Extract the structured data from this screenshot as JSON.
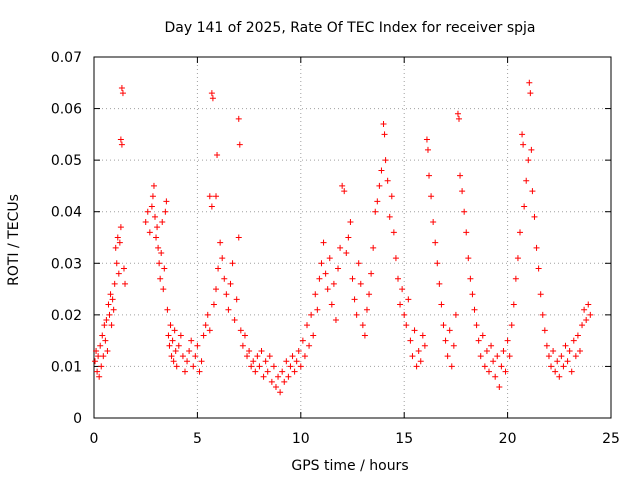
{
  "chart_data": {
    "type": "scatter",
    "title": "Day 141 of 2025, Rate Of TEC Index for receiver spja",
    "xlabel": "GPS time / hours",
    "ylabel": "ROTI / TECUs",
    "xlim": [
      0,
      25
    ],
    "ylim": [
      0,
      0.07
    ],
    "xticks": [
      0,
      5,
      10,
      15,
      20,
      25
    ],
    "xtick_labels": [
      "0",
      "5",
      "10",
      "15",
      "20",
      "25"
    ],
    "yticks": [
      0,
      0.01,
      0.02,
      0.03,
      0.04,
      0.05,
      0.06,
      0.07
    ],
    "ytick_labels": [
      "0",
      "0.01",
      "0.02",
      "0.03",
      "0.04",
      "0.05",
      "0.06",
      "0.07"
    ],
    "grid": true,
    "marker": "plus",
    "series": [
      {
        "name": "ROTI",
        "color": "#ff0000",
        "points": [
          [
            0.05,
            0.011
          ],
          [
            0.1,
            0.013
          ],
          [
            0.15,
            0.009
          ],
          [
            0.2,
            0.012
          ],
          [
            0.25,
            0.008
          ],
          [
            0.3,
            0.014
          ],
          [
            0.35,
            0.01
          ],
          [
            0.4,
            0.016
          ],
          [
            0.45,
            0.012
          ],
          [
            0.5,
            0.018
          ],
          [
            0.55,
            0.015
          ],
          [
            0.6,
            0.019
          ],
          [
            0.65,
            0.013
          ],
          [
            0.7,
            0.022
          ],
          [
            0.75,
            0.02
          ],
          [
            0.8,
            0.024
          ],
          [
            0.85,
            0.018
          ],
          [
            0.9,
            0.023
          ],
          [
            0.95,
            0.021
          ],
          [
            1.0,
            0.026
          ],
          [
            1.05,
            0.033
          ],
          [
            1.1,
            0.03
          ],
          [
            1.15,
            0.035
          ],
          [
            1.2,
            0.028
          ],
          [
            1.25,
            0.034
          ],
          [
            1.3,
            0.037
          ],
          [
            1.35,
            0.064
          ],
          [
            1.4,
            0.063
          ],
          [
            1.3,
            0.054
          ],
          [
            1.35,
            0.053
          ],
          [
            1.45,
            0.029
          ],
          [
            1.5,
            0.026
          ],
          [
            2.5,
            0.038
          ],
          [
            2.6,
            0.04
          ],
          [
            2.7,
            0.036
          ],
          [
            2.8,
            0.041
          ],
          [
            2.85,
            0.043
          ],
          [
            2.9,
            0.045
          ],
          [
            2.95,
            0.039
          ],
          [
            3.0,
            0.035
          ],
          [
            3.05,
            0.037
          ],
          [
            3.1,
            0.033
          ],
          [
            3.15,
            0.03
          ],
          [
            3.2,
            0.027
          ],
          [
            3.25,
            0.032
          ],
          [
            3.3,
            0.038
          ],
          [
            3.35,
            0.025
          ],
          [
            3.4,
            0.029
          ],
          [
            3.45,
            0.04
          ],
          [
            3.5,
            0.042
          ],
          [
            3.55,
            0.021
          ],
          [
            3.6,
            0.016
          ],
          [
            3.65,
            0.014
          ],
          [
            3.7,
            0.018
          ],
          [
            3.75,
            0.012
          ],
          [
            3.8,
            0.015
          ],
          [
            3.85,
            0.011
          ],
          [
            3.9,
            0.017
          ],
          [
            3.95,
            0.013
          ],
          [
            4.0,
            0.01
          ],
          [
            4.1,
            0.014
          ],
          [
            4.2,
            0.016
          ],
          [
            4.3,
            0.012
          ],
          [
            4.4,
            0.009
          ],
          [
            4.5,
            0.011
          ],
          [
            4.6,
            0.013
          ],
          [
            4.7,
            0.015
          ],
          [
            4.8,
            0.01
          ],
          [
            4.9,
            0.012
          ],
          [
            5.0,
            0.014
          ],
          [
            5.1,
            0.009
          ],
          [
            5.2,
            0.011
          ],
          [
            5.3,
            0.016
          ],
          [
            5.4,
            0.018
          ],
          [
            5.5,
            0.02
          ],
          [
            5.6,
            0.017
          ],
          [
            5.7,
            0.063
          ],
          [
            5.75,
            0.062
          ],
          [
            5.6,
            0.043
          ],
          [
            5.7,
            0.041
          ],
          [
            5.9,
            0.043
          ],
          [
            5.95,
            0.051
          ],
          [
            5.8,
            0.022
          ],
          [
            5.9,
            0.025
          ],
          [
            6.0,
            0.029
          ],
          [
            6.1,
            0.034
          ],
          [
            6.2,
            0.031
          ],
          [
            6.3,
            0.027
          ],
          [
            6.4,
            0.024
          ],
          [
            6.5,
            0.021
          ],
          [
            6.6,
            0.026
          ],
          [
            6.7,
            0.03
          ],
          [
            6.8,
            0.019
          ],
          [
            6.9,
            0.023
          ],
          [
            7.0,
            0.035
          ],
          [
            7.0,
            0.058
          ],
          [
            7.05,
            0.053
          ],
          [
            7.1,
            0.017
          ],
          [
            7.2,
            0.014
          ],
          [
            7.3,
            0.016
          ],
          [
            7.4,
            0.012
          ],
          [
            7.5,
            0.013
          ],
          [
            7.6,
            0.01
          ],
          [
            7.7,
            0.011
          ],
          [
            7.8,
            0.009
          ],
          [
            7.9,
            0.012
          ],
          [
            8.0,
            0.01
          ],
          [
            8.1,
            0.013
          ],
          [
            8.2,
            0.008
          ],
          [
            8.3,
            0.011
          ],
          [
            8.4,
            0.009
          ],
          [
            8.5,
            0.012
          ],
          [
            8.6,
            0.007
          ],
          [
            8.7,
            0.01
          ],
          [
            8.8,
            0.006
          ],
          [
            8.9,
            0.008
          ],
          [
            9.0,
            0.005
          ],
          [
            9.1,
            0.009
          ],
          [
            9.2,
            0.007
          ],
          [
            9.3,
            0.011
          ],
          [
            9.4,
            0.008
          ],
          [
            9.5,
            0.01
          ],
          [
            9.6,
            0.012
          ],
          [
            9.7,
            0.009
          ],
          [
            9.8,
            0.011
          ],
          [
            9.9,
            0.013
          ],
          [
            10.0,
            0.01
          ],
          [
            10.1,
            0.015
          ],
          [
            10.2,
            0.012
          ],
          [
            10.3,
            0.018
          ],
          [
            10.4,
            0.014
          ],
          [
            10.5,
            0.02
          ],
          [
            10.6,
            0.016
          ],
          [
            10.7,
            0.024
          ],
          [
            10.8,
            0.021
          ],
          [
            10.9,
            0.027
          ],
          [
            11.0,
            0.03
          ],
          [
            11.1,
            0.034
          ],
          [
            11.2,
            0.028
          ],
          [
            11.3,
            0.025
          ],
          [
            11.4,
            0.031
          ],
          [
            11.5,
            0.022
          ],
          [
            11.6,
            0.026
          ],
          [
            11.7,
            0.019
          ],
          [
            11.8,
            0.029
          ],
          [
            11.9,
            0.033
          ],
          [
            12.0,
            0.045
          ],
          [
            12.1,
            0.044
          ],
          [
            12.2,
            0.032
          ],
          [
            12.3,
            0.035
          ],
          [
            12.4,
            0.038
          ],
          [
            12.5,
            0.027
          ],
          [
            12.6,
            0.023
          ],
          [
            12.7,
            0.02
          ],
          [
            12.8,
            0.03
          ],
          [
            12.9,
            0.026
          ],
          [
            13.0,
            0.018
          ],
          [
            13.1,
            0.016
          ],
          [
            13.2,
            0.021
          ],
          [
            13.3,
            0.024
          ],
          [
            13.4,
            0.028
          ],
          [
            13.5,
            0.033
          ],
          [
            13.6,
            0.04
          ],
          [
            13.7,
            0.042
          ],
          [
            13.8,
            0.045
          ],
          [
            13.9,
            0.048
          ],
          [
            14.0,
            0.057
          ],
          [
            14.05,
            0.055
          ],
          [
            14.1,
            0.05
          ],
          [
            14.2,
            0.046
          ],
          [
            14.3,
            0.039
          ],
          [
            14.4,
            0.043
          ],
          [
            14.5,
            0.036
          ],
          [
            14.6,
            0.031
          ],
          [
            14.7,
            0.027
          ],
          [
            14.8,
            0.022
          ],
          [
            14.9,
            0.025
          ],
          [
            15.0,
            0.02
          ],
          [
            15.1,
            0.018
          ],
          [
            15.2,
            0.023
          ],
          [
            15.3,
            0.015
          ],
          [
            15.4,
            0.012
          ],
          [
            15.5,
            0.017
          ],
          [
            15.6,
            0.01
          ],
          [
            15.7,
            0.013
          ],
          [
            15.8,
            0.011
          ],
          [
            15.9,
            0.016
          ],
          [
            16.0,
            0.014
          ],
          [
            16.1,
            0.054
          ],
          [
            16.15,
            0.052
          ],
          [
            16.2,
            0.047
          ],
          [
            16.3,
            0.043
          ],
          [
            16.4,
            0.038
          ],
          [
            16.5,
            0.034
          ],
          [
            16.6,
            0.03
          ],
          [
            16.7,
            0.026
          ],
          [
            16.8,
            0.022
          ],
          [
            16.9,
            0.018
          ],
          [
            17.0,
            0.015
          ],
          [
            17.1,
            0.012
          ],
          [
            17.2,
            0.017
          ],
          [
            17.3,
            0.01
          ],
          [
            17.4,
            0.014
          ],
          [
            17.5,
            0.02
          ],
          [
            17.6,
            0.059
          ],
          [
            17.65,
            0.058
          ],
          [
            17.7,
            0.047
          ],
          [
            17.8,
            0.044
          ],
          [
            17.9,
            0.04
          ],
          [
            18.0,
            0.036
          ],
          [
            18.1,
            0.031
          ],
          [
            18.2,
            0.027
          ],
          [
            18.3,
            0.024
          ],
          [
            18.4,
            0.021
          ],
          [
            18.5,
            0.018
          ],
          [
            18.6,
            0.015
          ],
          [
            18.7,
            0.012
          ],
          [
            18.8,
            0.016
          ],
          [
            18.9,
            0.01
          ],
          [
            19.0,
            0.013
          ],
          [
            19.1,
            0.009
          ],
          [
            19.2,
            0.014
          ],
          [
            19.3,
            0.011
          ],
          [
            19.4,
            0.008
          ],
          [
            19.5,
            0.012
          ],
          [
            19.6,
            0.006
          ],
          [
            19.7,
            0.01
          ],
          [
            19.8,
            0.013
          ],
          [
            19.9,
            0.009
          ],
          [
            20.0,
            0.015
          ],
          [
            20.1,
            0.012
          ],
          [
            20.2,
            0.018
          ],
          [
            20.3,
            0.022
          ],
          [
            20.4,
            0.027
          ],
          [
            20.5,
            0.031
          ],
          [
            20.6,
            0.036
          ],
          [
            20.7,
            0.055
          ],
          [
            20.75,
            0.053
          ],
          [
            20.8,
            0.041
          ],
          [
            20.9,
            0.046
          ],
          [
            21.0,
            0.05
          ],
          [
            21.05,
            0.065
          ],
          [
            21.1,
            0.063
          ],
          [
            21.15,
            0.052
          ],
          [
            21.2,
            0.044
          ],
          [
            21.3,
            0.039
          ],
          [
            21.4,
            0.033
          ],
          [
            21.5,
            0.029
          ],
          [
            21.6,
            0.024
          ],
          [
            21.7,
            0.02
          ],
          [
            21.8,
            0.017
          ],
          [
            21.9,
            0.014
          ],
          [
            22.0,
            0.012
          ],
          [
            22.1,
            0.01
          ],
          [
            22.2,
            0.013
          ],
          [
            22.3,
            0.009
          ],
          [
            22.4,
            0.011
          ],
          [
            22.5,
            0.008
          ],
          [
            22.6,
            0.012
          ],
          [
            22.7,
            0.01
          ],
          [
            22.8,
            0.014
          ],
          [
            22.9,
            0.011
          ],
          [
            23.0,
            0.013
          ],
          [
            23.1,
            0.009
          ],
          [
            23.2,
            0.015
          ],
          [
            23.3,
            0.012
          ],
          [
            23.4,
            0.016
          ],
          [
            23.5,
            0.013
          ],
          [
            23.6,
            0.018
          ],
          [
            23.7,
            0.021
          ],
          [
            23.8,
            0.019
          ],
          [
            23.9,
            0.022
          ],
          [
            24.0,
            0.02
          ]
        ]
      }
    ]
  }
}
